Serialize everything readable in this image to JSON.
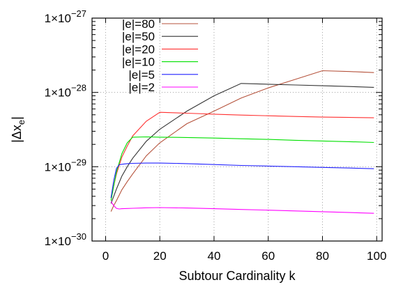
{
  "chart_data": {
    "type": "line",
    "title": "",
    "xlabel": "Subtour Cardinality k",
    "ylabel": "|Δx",
    "ylabel_subscript": "e",
    "xlim": [
      -5,
      102
    ],
    "ylim": [
      1e-30,
      1e-27
    ],
    "yscale": "log",
    "grid": true,
    "legend_position": "top-left",
    "x_ticks": [
      0,
      20,
      40,
      60,
      80,
      100
    ],
    "x_tick_labels": [
      "0",
      "20",
      "40",
      "60",
      "80",
      "100"
    ],
    "y_ticks": [
      1e-30,
      1e-29,
      1e-28,
      1e-27
    ],
    "y_tick_mantissa": "1×10",
    "y_tick_exponents": [
      "−30",
      "−29",
      "−28",
      "−27"
    ],
    "series": [
      {
        "name": "|e|=80",
        "color": "#b5523b",
        "x": [
          2,
          3,
          4,
          6,
          8,
          10,
          15,
          20,
          30,
          40,
          50,
          60,
          70,
          80,
          90,
          99
        ],
        "y": [
          2.5e-30,
          3e-30,
          3.5e-30,
          4.9e-30,
          6.3e-30,
          8e-30,
          1.4e-29,
          2.1e-29,
          3.8e-29,
          5.6e-29,
          8.4e-29,
          1.15e-28,
          1.5e-28,
          1.96e-28,
          1.91e-28,
          1.85e-28
        ]
      },
      {
        "name": "|e|=50",
        "color": "#333333",
        "x": [
          2,
          3,
          4,
          6,
          8,
          10,
          15,
          20,
          30,
          40,
          50,
          60,
          70,
          80,
          90,
          99
        ],
        "y": [
          3.2e-30,
          4e-30,
          5e-30,
          7.5e-30,
          1e-29,
          1.3e-29,
          2.2e-29,
          3.2e-29,
          5.6e-29,
          9e-29,
          1.32e-28,
          1.29e-28,
          1.26e-28,
          1.23e-28,
          1.2e-28,
          1.17e-28
        ]
      },
      {
        "name": "|e|=20",
        "color": "#ff3030",
        "x": [
          2,
          3,
          4,
          6,
          8,
          10,
          15,
          20,
          30,
          40,
          50,
          60,
          70,
          80,
          90,
          99
        ],
        "y": [
          3.8e-30,
          5.5e-30,
          8e-30,
          1.35e-29,
          1.9e-29,
          2.6e-29,
          4.1e-29,
          5.4e-29,
          5.25e-29,
          5.1e-29,
          4.95e-29,
          4.85e-29,
          4.75e-29,
          4.65e-29,
          4.6e-29,
          4.55e-29
        ]
      },
      {
        "name": "|e|=10",
        "color": "#00e000",
        "x": [
          2,
          3,
          4,
          6,
          8,
          10,
          15,
          20,
          30,
          40,
          50,
          60,
          70,
          80,
          90,
          99
        ],
        "y": [
          3.5e-30,
          5.5e-30,
          8.5e-30,
          1.5e-29,
          2.1e-29,
          2.5e-29,
          2.52e-29,
          2.5e-29,
          2.47e-29,
          2.43e-29,
          2.38e-29,
          2.33e-29,
          2.27e-29,
          2.22e-29,
          2.17e-29,
          2.12e-29
        ]
      },
      {
        "name": "|e|=5",
        "color": "#2020ff",
        "x": [
          2,
          3,
          4,
          5,
          6,
          8,
          10,
          15,
          20,
          30,
          40,
          50,
          60,
          70,
          80,
          90,
          99
        ],
        "y": [
          3.8e-30,
          6.5e-30,
          9.5e-30,
          1.06e-29,
          1.08e-29,
          1.1e-29,
          1.11e-29,
          1.12e-29,
          1.12e-29,
          1.1e-29,
          1.07e-29,
          1.04e-29,
          1.02e-29,
          1e-29,
          9.8e-30,
          9.6e-30,
          9.4e-30
        ]
      },
      {
        "name": "|e|=2",
        "color": "#ff00ff",
        "x": [
          2,
          3,
          4,
          5,
          6,
          8,
          10,
          15,
          20,
          30,
          40,
          50,
          60,
          70,
          80,
          90,
          99
        ],
        "y": [
          3.4e-30,
          3e-30,
          2.75e-30,
          2.7e-30,
          2.72e-30,
          2.74e-30,
          2.76e-30,
          2.8e-30,
          2.82e-30,
          2.78e-30,
          2.72e-30,
          2.66e-30,
          2.6e-30,
          2.54e-30,
          2.48e-30,
          2.42e-30,
          2.36e-30
        ]
      }
    ]
  }
}
